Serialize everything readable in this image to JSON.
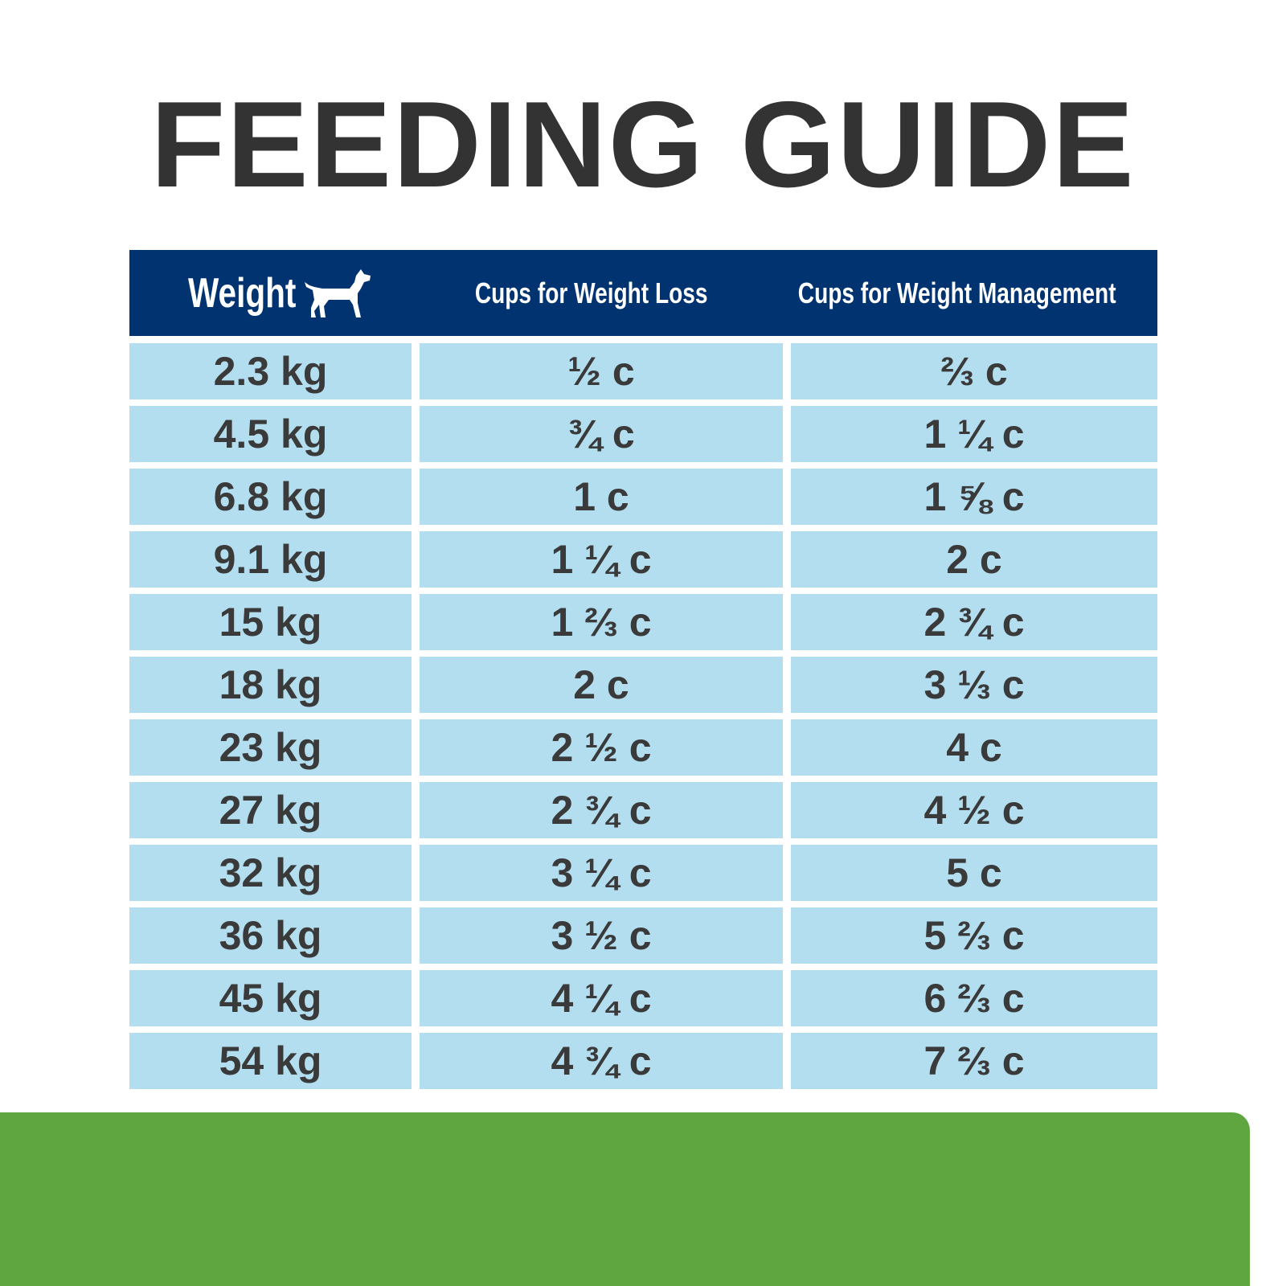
{
  "title": "FEEDING GUIDE",
  "table": {
    "header": [
      "Weight",
      "Cups for Weight Loss",
      "Cups for Weight Management"
    ],
    "rows": [
      [
        "2.3 kg",
        "½ c",
        "⅔ c"
      ],
      [
        "4.5 kg",
        "¾ c",
        "1 ¼ c"
      ],
      [
        "6.8 kg",
        "1 c",
        "1 ⅝ c"
      ],
      [
        "9.1 kg",
        "1 ¼ c",
        "2 c"
      ],
      [
        "15 kg",
        "1 ⅔ c",
        "2 ¾ c"
      ],
      [
        "18 kg",
        "2 c",
        "3 ⅓ c"
      ],
      [
        "23 kg",
        "2 ½ c",
        "4 c"
      ],
      [
        "27 kg",
        "2 ¾ c",
        "4 ½ c"
      ],
      [
        "32 kg",
        "3 ¼ c",
        "5 c"
      ],
      [
        "36 kg",
        "3 ½ c",
        "5 ⅔ c"
      ],
      [
        "45 kg",
        "4 ¼ c",
        "6 ⅔ c"
      ],
      [
        "54 kg",
        "4 ¾ c",
        "7 ⅔ c"
      ]
    ]
  }
}
